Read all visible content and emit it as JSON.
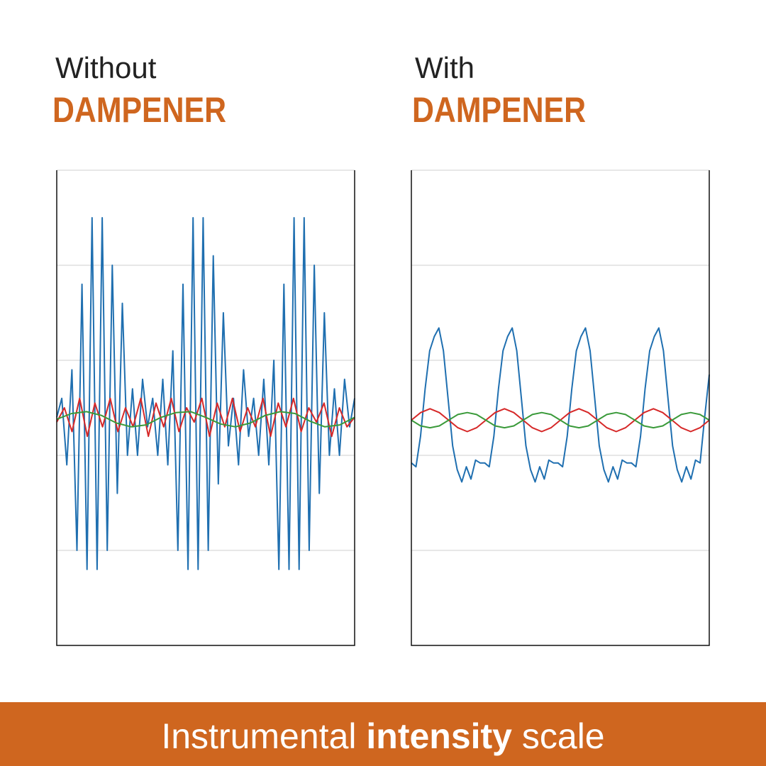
{
  "chart_data": [
    {
      "type": "line",
      "title": "Without",
      "subtitle": "DAMPENER",
      "ylim": [
        0,
        5
      ],
      "yticks": [
        1,
        2,
        3,
        4,
        5
      ],
      "grid": true,
      "series": [
        {
          "color": "#1f6fb0",
          "values": [
            2.4,
            2.6,
            1.9,
            2.9,
            1.0,
            3.8,
            0.8,
            4.5,
            0.8,
            4.5,
            1.0,
            4.0,
            1.6,
            3.6,
            2.0,
            2.7,
            2.0,
            2.8,
            2.3,
            2.6,
            2.0,
            2.8,
            1.9,
            3.1,
            1.0,
            3.8,
            0.8,
            4.5,
            0.8,
            4.5,
            1.0,
            4.1,
            1.7,
            3.5,
            2.1,
            2.6,
            1.9,
            2.9,
            2.2,
            2.6,
            2.0,
            2.8,
            1.9,
            3.0,
            0.8,
            3.8,
            0.8,
            4.5,
            0.8,
            4.5,
            1.0,
            4.0,
            1.6,
            3.5,
            2.0,
            2.7,
            2.0,
            2.8,
            2.3,
            2.6
          ]
        },
        {
          "color": "#d62828",
          "values": [
            2.35,
            2.5,
            2.25,
            2.6,
            2.2,
            2.55,
            2.3,
            2.6,
            2.25,
            2.5,
            2.3,
            2.6,
            2.2,
            2.55,
            2.3,
            2.6,
            2.25,
            2.5,
            2.35,
            2.6,
            2.2,
            2.55,
            2.3,
            2.6,
            2.25,
            2.5,
            2.3,
            2.6,
            2.2,
            2.55,
            2.3,
            2.6,
            2.25,
            2.5,
            2.35,
            2.55,
            2.2,
            2.5,
            2.3,
            2.4
          ]
        },
        {
          "color": "#3a9a3a",
          "values": [
            2.38,
            2.44,
            2.46,
            2.42,
            2.34,
            2.3,
            2.32,
            2.4,
            2.45,
            2.46,
            2.4,
            2.33,
            2.3,
            2.34,
            2.42,
            2.46,
            2.44,
            2.36,
            2.3,
            2.32,
            2.4
          ]
        }
      ]
    },
    {
      "type": "line",
      "title": "With",
      "subtitle": "DAMPENER",
      "ylim": [
        0,
        5
      ],
      "yticks": [
        1,
        2,
        3,
        4,
        5
      ],
      "grid": true,
      "series": [
        {
          "color": "#1f6fb0",
          "values": [
            1.92,
            1.88,
            2.2,
            2.7,
            3.1,
            3.25,
            3.34,
            3.1,
            2.6,
            2.1,
            1.85,
            1.72,
            1.88,
            1.75,
            1.95,
            1.92,
            1.92,
            1.88,
            2.2,
            2.7,
            3.1,
            3.25,
            3.34,
            3.1,
            2.6,
            2.1,
            1.85,
            1.72,
            1.88,
            1.75,
            1.95,
            1.92,
            1.92,
            1.88,
            2.2,
            2.7,
            3.1,
            3.25,
            3.34,
            3.1,
            2.6,
            2.1,
            1.85,
            1.72,
            1.88,
            1.75,
            1.95,
            1.92,
            1.92,
            1.88,
            2.2,
            2.7,
            3.1,
            3.25,
            3.34,
            3.1,
            2.6,
            2.1,
            1.85,
            1.72,
            1.88,
            1.75,
            1.95,
            1.92,
            2.4,
            2.85
          ]
        },
        {
          "color": "#d62828",
          "values": [
            2.37,
            2.45,
            2.49,
            2.45,
            2.37,
            2.29,
            2.25,
            2.29,
            2.37,
            2.45,
            2.49,
            2.45,
            2.37,
            2.29,
            2.25,
            2.29,
            2.37,
            2.45,
            2.49,
            2.45,
            2.37,
            2.29,
            2.25,
            2.29,
            2.37,
            2.45,
            2.49,
            2.45,
            2.37,
            2.29,
            2.25,
            2.29,
            2.37
          ]
        },
        {
          "color": "#3a9a3a",
          "values": [
            2.37,
            2.31,
            2.29,
            2.31,
            2.37,
            2.43,
            2.45,
            2.43,
            2.37,
            2.31,
            2.29,
            2.31,
            2.37,
            2.43,
            2.45,
            2.43,
            2.37,
            2.31,
            2.29,
            2.31,
            2.37,
            2.43,
            2.45,
            2.43,
            2.37,
            2.31,
            2.29,
            2.31,
            2.37,
            2.43,
            2.45,
            2.43,
            2.37
          ]
        }
      ]
    }
  ],
  "footer": {
    "start": "Instrumental",
    "bold": "intensity",
    "end": "scale",
    "color": "#cf661f"
  }
}
